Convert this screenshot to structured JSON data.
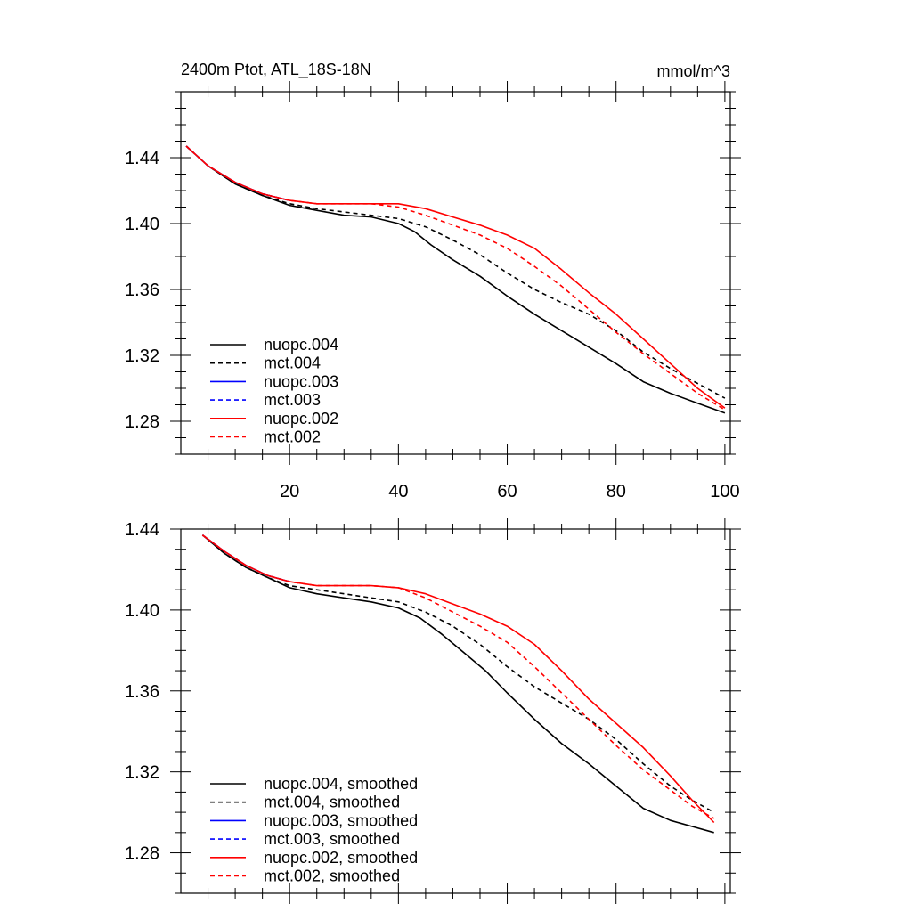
{
  "colors": {
    "black": "#000000",
    "blue": "#0000ff",
    "red": "#ff0000"
  },
  "chart_data": [
    {
      "type": "line",
      "title": "2400m Ptot, ATL_18S-18N",
      "units": "mmol/m^3",
      "xlim": [
        0,
        101
      ],
      "ylim": [
        1.26,
        1.48
      ],
      "xticks": [
        20,
        40,
        60,
        80,
        100
      ],
      "yticks": [
        1.28,
        1.32,
        1.36,
        1.4,
        1.44
      ],
      "ytick_labels": [
        "1.28",
        "1.32",
        "1.36",
        "1.40",
        "1.44"
      ],
      "xtick_labels": [
        "20",
        "40",
        "60",
        "80",
        "100"
      ],
      "legend_position": "bottom-left",
      "series": [
        {
          "name": "nuopc.004",
          "color": "#000000",
          "dash": "solid",
          "x": [
            1,
            5,
            10,
            15,
            20,
            25,
            30,
            35,
            40,
            43,
            46,
            50,
            55,
            60,
            65,
            70,
            75,
            80,
            85,
            90,
            95,
            100
          ],
          "y": [
            1.447,
            1.435,
            1.424,
            1.417,
            1.411,
            1.408,
            1.405,
            1.404,
            1.4,
            1.395,
            1.387,
            1.378,
            1.368,
            1.356,
            1.345,
            1.335,
            1.325,
            1.315,
            1.304,
            1.297,
            1.291,
            1.285
          ]
        },
        {
          "name": "mct.004",
          "color": "#000000",
          "dash": "dashed",
          "x": [
            1,
            5,
            10,
            15,
            20,
            25,
            30,
            35,
            40,
            45,
            50,
            55,
            60,
            65,
            70,
            75,
            80,
            85,
            90,
            95,
            100
          ],
          "y": [
            1.447,
            1.435,
            1.424,
            1.417,
            1.412,
            1.409,
            1.407,
            1.405,
            1.403,
            1.398,
            1.39,
            1.381,
            1.37,
            1.36,
            1.352,
            1.345,
            1.335,
            1.322,
            1.312,
            1.303,
            1.294
          ]
        },
        {
          "name": "nuopc.003",
          "color": "#0000ff",
          "dash": "solid",
          "x": [
            1,
            5,
            10,
            15,
            20
          ],
          "y": [
            1.447,
            1.435,
            1.425,
            1.418,
            1.414
          ]
        },
        {
          "name": "mct.003",
          "color": "#0000ff",
          "dash": "dashed",
          "x": [
            1,
            5,
            10,
            15,
            20
          ],
          "y": [
            1.447,
            1.435,
            1.425,
            1.418,
            1.414
          ]
        },
        {
          "name": "nuopc.002",
          "color": "#ff0000",
          "dash": "solid",
          "x": [
            1,
            5,
            10,
            15,
            20,
            25,
            30,
            35,
            40,
            45,
            50,
            55,
            60,
            65,
            70,
            75,
            80,
            85,
            90,
            95,
            100
          ],
          "y": [
            1.447,
            1.435,
            1.425,
            1.418,
            1.414,
            1.412,
            1.412,
            1.412,
            1.412,
            1.409,
            1.404,
            1.399,
            1.393,
            1.385,
            1.372,
            1.358,
            1.345,
            1.33,
            1.315,
            1.3,
            1.288
          ]
        },
        {
          "name": "mct.002",
          "color": "#ff0000",
          "dash": "dashed",
          "x": [
            1,
            5,
            10,
            15,
            20,
            25,
            30,
            35,
            40,
            45,
            50,
            55,
            60,
            65,
            70,
            75,
            80,
            85,
            90,
            95,
            100
          ],
          "y": [
            1.447,
            1.435,
            1.425,
            1.418,
            1.414,
            1.412,
            1.412,
            1.412,
            1.41,
            1.405,
            1.399,
            1.393,
            1.385,
            1.374,
            1.362,
            1.348,
            1.334,
            1.321,
            1.309,
            1.297,
            1.287
          ]
        }
      ]
    },
    {
      "type": "line",
      "title": "",
      "xlim": [
        0,
        101
      ],
      "ylim": [
        1.26,
        1.44
      ],
      "xticks": [
        20,
        40,
        60,
        80,
        100
      ],
      "yticks": [
        1.28,
        1.32,
        1.36,
        1.4,
        1.44
      ],
      "ytick_labels": [
        "1.28",
        "1.32",
        "1.36",
        "1.40",
        "1.44"
      ],
      "legend_position": "bottom-left",
      "series": [
        {
          "name": "nuopc.004, smoothed",
          "color": "#000000",
          "dash": "solid",
          "x": [
            4,
            8,
            12,
            16,
            20,
            25,
            30,
            35,
            40,
            44,
            48,
            52,
            56,
            60,
            65,
            70,
            75,
            80,
            85,
            90,
            94,
            98
          ],
          "y": [
            1.437,
            1.428,
            1.421,
            1.416,
            1.411,
            1.408,
            1.406,
            1.404,
            1.401,
            1.396,
            1.388,
            1.379,
            1.37,
            1.359,
            1.346,
            1.334,
            1.324,
            1.313,
            1.302,
            1.296,
            1.293,
            1.29
          ]
        },
        {
          "name": "mct.004, smoothed",
          "color": "#000000",
          "dash": "dashed",
          "x": [
            4,
            8,
            12,
            16,
            20,
            25,
            30,
            35,
            40,
            45,
            50,
            55,
            60,
            65,
            70,
            75,
            80,
            85,
            90,
            94,
            98
          ],
          "y": [
            1.437,
            1.428,
            1.421,
            1.416,
            1.412,
            1.41,
            1.408,
            1.406,
            1.404,
            1.399,
            1.392,
            1.383,
            1.372,
            1.362,
            1.354,
            1.346,
            1.336,
            1.324,
            1.313,
            1.306,
            1.3
          ]
        },
        {
          "name": "nuopc.003, smoothed",
          "color": "#0000ff",
          "dash": "solid",
          "x": [
            4,
            8,
            12,
            16,
            20
          ],
          "y": [
            1.437,
            1.429,
            1.422,
            1.417,
            1.414
          ]
        },
        {
          "name": "mct.003, smoothed",
          "color": "#0000ff",
          "dash": "dashed",
          "x": [
            4,
            8,
            12,
            16,
            20
          ],
          "y": [
            1.437,
            1.429,
            1.422,
            1.417,
            1.414
          ]
        },
        {
          "name": "nuopc.002, smoothed",
          "color": "#ff0000",
          "dash": "solid",
          "x": [
            4,
            8,
            12,
            16,
            20,
            25,
            30,
            35,
            40,
            45,
            50,
            55,
            60,
            65,
            70,
            75,
            80,
            85,
            90,
            94,
            98
          ],
          "y": [
            1.437,
            1.429,
            1.422,
            1.417,
            1.414,
            1.412,
            1.412,
            1.412,
            1.411,
            1.408,
            1.403,
            1.398,
            1.392,
            1.383,
            1.37,
            1.356,
            1.344,
            1.332,
            1.318,
            1.306,
            1.295
          ]
        },
        {
          "name": "mct.002, smoothed",
          "color": "#ff0000",
          "dash": "dashed",
          "x": [
            4,
            8,
            12,
            16,
            20,
            25,
            30,
            35,
            40,
            45,
            50,
            55,
            60,
            65,
            70,
            75,
            80,
            85,
            90,
            94,
            98
          ],
          "y": [
            1.437,
            1.429,
            1.422,
            1.417,
            1.414,
            1.412,
            1.412,
            1.412,
            1.411,
            1.406,
            1.399,
            1.392,
            1.384,
            1.372,
            1.359,
            1.346,
            1.333,
            1.321,
            1.311,
            1.303,
            1.297
          ]
        }
      ]
    }
  ]
}
